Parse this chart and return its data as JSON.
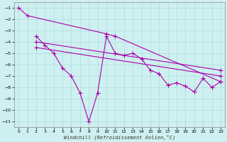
{
  "xlabel": "Windchill (Refroidissement éolien,°C)",
  "background_color": "#cff0f0",
  "grid_color": "#aadddd",
  "line_color": "#aa00aa",
  "line_width": 0.8,
  "marker": "+",
  "markersize": 4,
  "markeredgewidth": 0.8,
  "xlim": [
    -0.5,
    23.5
  ],
  "ylim": [
    -11.5,
    -0.5
  ],
  "yticks": [
    -1,
    -2,
    -3,
    -4,
    -5,
    -6,
    -7,
    -8,
    -9,
    -10,
    -11
  ],
  "xticks": [
    0,
    1,
    2,
    3,
    4,
    5,
    6,
    7,
    8,
    9,
    10,
    11,
    12,
    13,
    14,
    15,
    16,
    17,
    18,
    19,
    20,
    21,
    22,
    23
  ],
  "series": [
    {
      "x": [
        0,
        1,
        10,
        11,
        23
      ],
      "y": [
        -1,
        -1.7,
        -3.3,
        -3.5,
        -7.5
      ]
    },
    {
      "x": [
        2,
        3,
        4,
        5,
        6,
        7,
        8,
        9,
        10,
        11,
        12,
        13,
        14,
        15,
        16,
        17,
        18,
        19,
        20,
        21,
        22,
        23
      ],
      "y": [
        -3.5,
        -4.3,
        -5.0,
        -6.3,
        -7.0,
        -8.5,
        -11.0,
        -8.5,
        -3.5,
        -5.0,
        -5.2,
        -5.0,
        -5.5,
        -6.5,
        -6.8,
        -7.8,
        -7.6,
        -7.9,
        -8.4,
        -7.2,
        -8.0,
        -7.5
      ]
    },
    {
      "x": [
        2,
        23
      ],
      "y": [
        -4.0,
        -6.5
      ]
    },
    {
      "x": [
        2,
        23
      ],
      "y": [
        -4.5,
        -7.0
      ]
    }
  ]
}
